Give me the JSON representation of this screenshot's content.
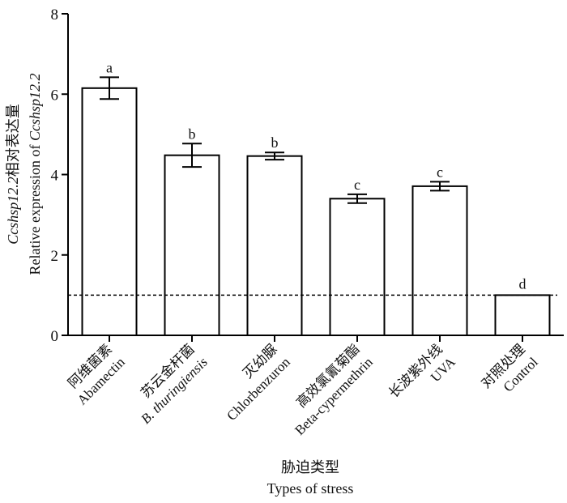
{
  "chart_data": {
    "type": "bar",
    "categories": [
      {
        "zh": "阿维菌素",
        "en": "Abamectin"
      },
      {
        "zh": "苏云金杆菌",
        "en": "B. thuringiensis",
        "en_italic": true
      },
      {
        "zh": "灭幼脲",
        "en": "Chlorbenzuron"
      },
      {
        "zh": "高效氯氰菊酯",
        "en": "Beta-cypermethrin"
      },
      {
        "zh": "长波紫外线",
        "en": "UVA"
      },
      {
        "zh": "对照处理",
        "en": "Control"
      }
    ],
    "values": [
      6.15,
      4.48,
      4.46,
      3.4,
      3.71,
      1.0
    ],
    "errors": [
      0.27,
      0.29,
      0.09,
      0.11,
      0.11,
      0
    ],
    "significance": [
      "a",
      "b",
      "b",
      "c",
      "c",
      "d"
    ],
    "ylim": [
      0,
      8
    ],
    "yticks": [
      "0",
      "2",
      "4",
      "6",
      "8"
    ],
    "reference_line": 1.0,
    "ylabel": {
      "line1_italic": "Ccshsp12.2",
      "line1_zh": "相对表达量",
      "line2_prefix": "Relative expression of ",
      "line2_italic": "Ccshsp12.2"
    },
    "xlabel": {
      "zh": "胁迫类型",
      "en": "Types of stress"
    },
    "bar_fill": "#ffffff",
    "bar_stroke": "#000000",
    "grid": false
  }
}
